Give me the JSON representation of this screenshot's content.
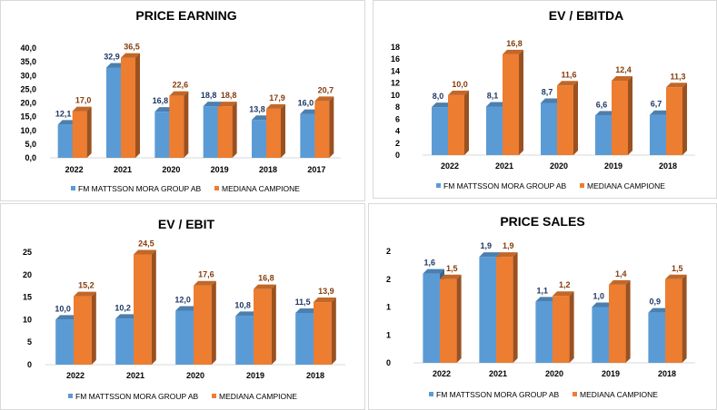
{
  "colors": {
    "blue": "#5b9bd5",
    "orange": "#ed7d31",
    "blue_label": "#1f3864",
    "orange_label": "#843c0c"
  },
  "chart_data": [
    {
      "type": "bar",
      "title": "PRICE EARNING",
      "categories": [
        "2022",
        "2021",
        "2020",
        "2019",
        "2018",
        "2017"
      ],
      "yticks": [
        "0,0",
        "5,0",
        "10,0",
        "15,0",
        "20,0",
        "25,0",
        "30,0",
        "35,0",
        "40,0"
      ],
      "ylim": [
        0,
        40
      ],
      "series": [
        {
          "name": "FM MATTSSON MORA GROUP AB",
          "values": [
            12.1,
            32.9,
            16.8,
            18.8,
            13.8,
            16.0
          ]
        },
        {
          "name": "MEDIANA CAMPIONE",
          "values": [
            17.0,
            36.5,
            22.6,
            18.8,
            17.9,
            20.7
          ]
        }
      ],
      "legend": "bottom"
    },
    {
      "type": "bar",
      "title": "EV / EBITDA",
      "categories": [
        "2022",
        "2021",
        "2020",
        "2019",
        "2018"
      ],
      "yticks": [
        "0",
        "2",
        "4",
        "6",
        "8",
        "10",
        "12",
        "14",
        "16",
        "18"
      ],
      "ylim": [
        0,
        18
      ],
      "series": [
        {
          "name": "FM MATTSSON MORA GROUP AB",
          "values": [
            8.0,
            8.1,
            8.7,
            6.6,
            6.7
          ]
        },
        {
          "name": "MEDIANA CAMPIONE",
          "values": [
            10.0,
            16.8,
            11.6,
            12.4,
            11.3
          ]
        }
      ],
      "legend": "bottom"
    },
    {
      "type": "bar",
      "title": "EV / EBIT",
      "categories": [
        "2022",
        "2021",
        "2020",
        "2019",
        "2018"
      ],
      "yticks": [
        "0",
        "5",
        "10",
        "15",
        "20",
        "25"
      ],
      "ylim": [
        0,
        25
      ],
      "series": [
        {
          "name": "FM MATTSSON MORA GROUP AB",
          "values": [
            10.0,
            10.2,
            12.0,
            10.8,
            11.5
          ]
        },
        {
          "name": "MEDIANA CAMPIONE",
          "values": [
            15.2,
            24.5,
            17.6,
            16.8,
            13.9
          ]
        }
      ],
      "legend": "bottom"
    },
    {
      "type": "bar",
      "title": "PRICE SALES",
      "categories": [
        "2022",
        "2021",
        "2020",
        "2019",
        "2018"
      ],
      "yticks": [
        "0",
        "1",
        "1",
        "2",
        "2"
      ],
      "ylim": [
        0,
        2
      ],
      "series": [
        {
          "name": "FM MATTSSON MORA GROUP AB",
          "values": [
            1.6,
            1.9,
            1.1,
            1.0,
            0.9
          ]
        },
        {
          "name": "MEDIANA CAMPIONE",
          "values": [
            1.5,
            1.9,
            1.2,
            1.4,
            1.5
          ]
        }
      ],
      "legend": "bottom"
    }
  ]
}
